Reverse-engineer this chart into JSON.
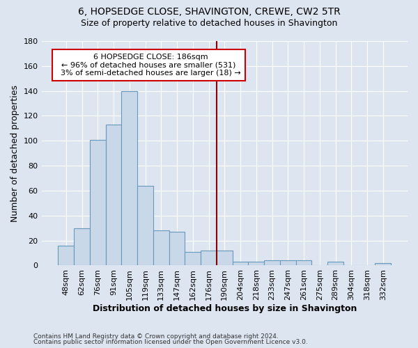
{
  "title": "6, HOPSEDGE CLOSE, SHAVINGTON, CREWE, CW2 5TR",
  "subtitle": "Size of property relative to detached houses in Shavington",
  "xlabel": "Distribution of detached houses by size in Shavington",
  "ylabel": "Number of detached properties",
  "bar_color": "#c8d8e8",
  "bar_edge_color": "#6699bb",
  "background_color": "#dde5f0",
  "grid_color": "#ffffff",
  "red_line_color": "#8b0000",
  "categories": [
    "48sqm",
    "62sqm",
    "76sqm",
    "91sqm",
    "105sqm",
    "119sqm",
    "133sqm",
    "147sqm",
    "162sqm",
    "176sqm",
    "190sqm",
    "204sqm",
    "218sqm",
    "233sqm",
    "247sqm",
    "261sqm",
    "275sqm",
    "289sqm",
    "304sqm",
    "318sqm",
    "332sqm"
  ],
  "values": [
    16,
    30,
    101,
    113,
    140,
    64,
    28,
    27,
    11,
    12,
    12,
    3,
    3,
    4,
    4,
    4,
    0,
    3,
    0,
    0,
    2
  ],
  "property_label": "6 HOPSEDGE CLOSE: 186sqm",
  "pct_smaller": "96% of detached houses are smaller (531)",
  "pct_larger": "3% of semi-detached houses are larger (18)",
  "ylim": [
    0,
    180
  ],
  "yticks": [
    0,
    20,
    40,
    60,
    80,
    100,
    120,
    140,
    160,
    180
  ],
  "red_line_index": 9.5,
  "footer1": "Contains HM Land Registry data © Crown copyright and database right 2024.",
  "footer2": "Contains public sector information licensed under the Open Government Licence v3.0."
}
